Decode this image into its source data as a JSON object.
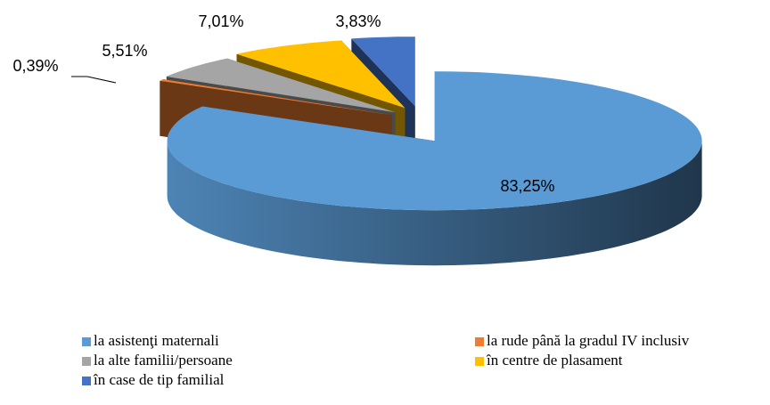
{
  "chart_data": {
    "type": "pie3d",
    "categories": [
      "la asistenţi maternali",
      "la rude până la gradul IV inclusiv",
      "la alte familii/persoane",
      "în centre de plasament",
      "în case de tip familial"
    ],
    "values": [
      83.25,
      0.39,
      5.51,
      7.01,
      3.83
    ],
    "value_labels": [
      "83,25%",
      "0,39%",
      "5,51%",
      "7,01%",
      "3,83%"
    ],
    "colors": [
      "#5b9bd5",
      "#ed7d31",
      "#a5a5a5",
      "#ffc000",
      "#4472c4"
    ],
    "legend": "bottom"
  }
}
